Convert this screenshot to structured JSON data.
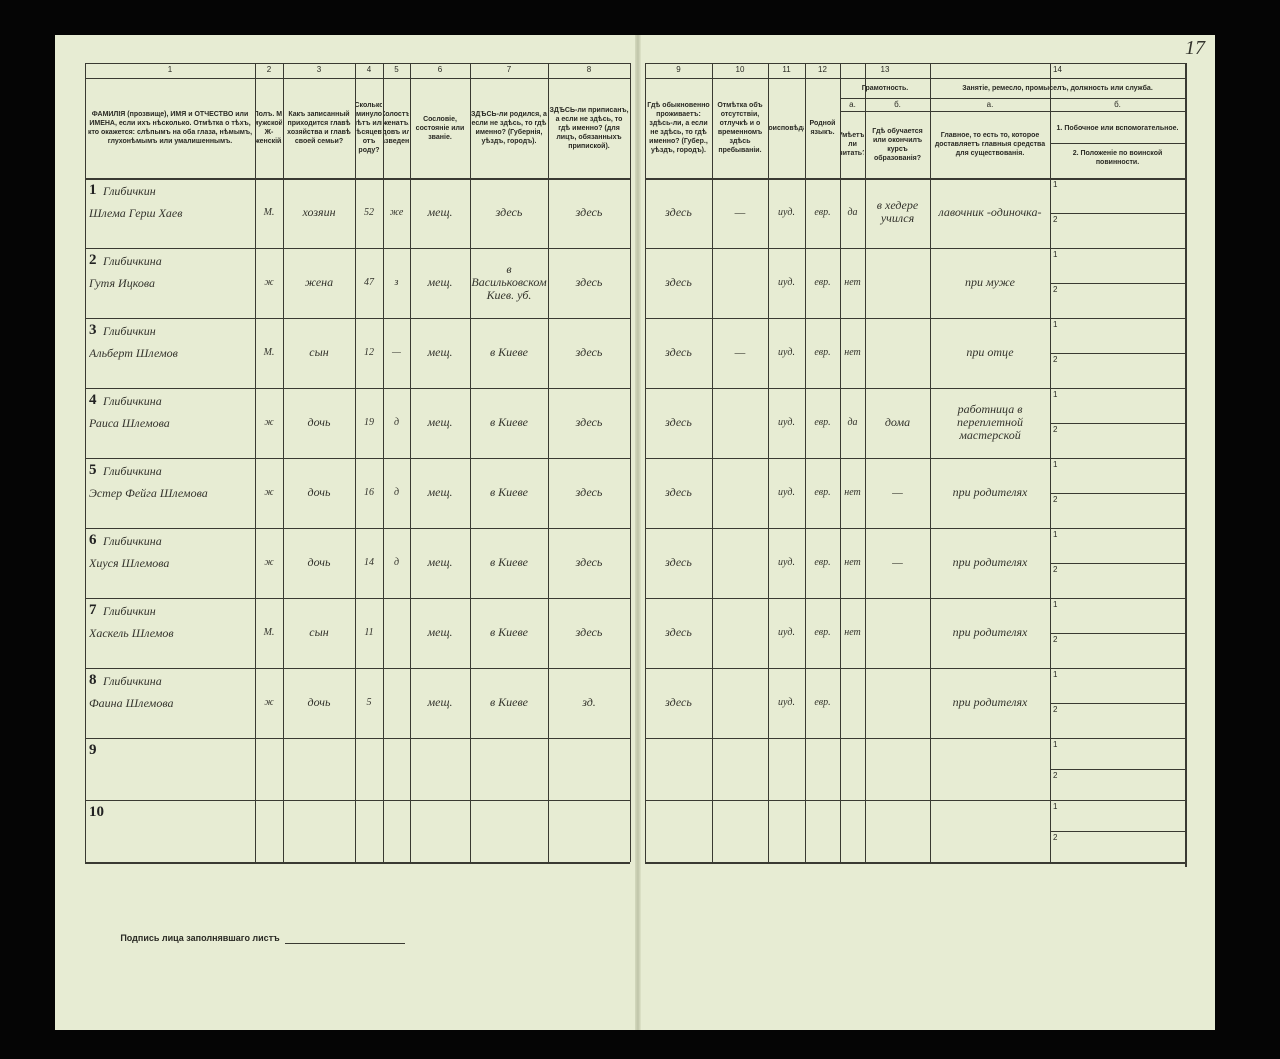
{
  "page": {
    "corner_mark": "17"
  },
  "columns": [
    {
      "num": "1",
      "header": "ФАМИЛІЯ (прозвище), ИМЯ и ОТЧЕСТВО или ИМЕНА, если ихъ нѣсколько. Отмѣтка о тѣхъ, кто окажется: слѣпымъ на оба глаза, нѣмымъ, глухонѣмымъ или умалишеннымъ."
    },
    {
      "num": "2",
      "header": "Полъ. М-мужской. Ж-женскій."
    },
    {
      "num": "3",
      "header": "Какъ записанный приходится главѣ хозяйства и главѣ своей семьи?"
    },
    {
      "num": "4",
      "header": "Сколько минуло лѣтъ или мѣсяцевъ отъ роду?"
    },
    {
      "num": "5",
      "header": "Холостъ, женатъ, вдовъ или разведенъ."
    },
    {
      "num": "6",
      "header": "Сословіе, состояніе или званіе."
    },
    {
      "num": "7",
      "header": "ЗДѢСЬ-ли родился, а если не здѣсь, то гдѣ именно? (Губернія, уѣздъ, городъ)."
    },
    {
      "num": "8",
      "header": "ЗДѢСЬ-ли приписанъ, а если не здѣсь, то гдѣ именно? (для лицъ, обязанныхъ припиской)."
    },
    {
      "num": "9",
      "header": "Гдѣ обыкновенно проживаетъ: здѣсь-ли, а если не здѣсь, то гдѣ именно? (Губер., уѣздъ, городъ)."
    },
    {
      "num": "10",
      "header": "Отмѣтка объ отсутствіи, отлучкѣ и о временномъ здѣсь пребываніи."
    },
    {
      "num": "11",
      "header": "Вѣроисповѣданіе."
    },
    {
      "num": "12",
      "header": "Родной языкъ."
    },
    {
      "num": "13",
      "header": "Грамотность.",
      "sub": [
        {
          "letter": "а.",
          "header": "Умѣетъ-ли читать?"
        },
        {
          "letter": "б.",
          "header": "Гдѣ обучается или окончилъ курсъ образованія?"
        }
      ]
    },
    {
      "num": "14",
      "header": "Занятіе, ремесло, промыселъ, должность или служба.",
      "sub": [
        {
          "letter": "а.",
          "header": "Главное, то есть то, которое доставляетъ главныя средства для существованія."
        },
        {
          "letter": "б.",
          "lines": [
            "1. Побочное или вспомогательное.",
            "2. Положеніе по воинской повинности."
          ]
        }
      ]
    }
  ],
  "rows": [
    {
      "num": "1",
      "name": [
        "Глибичкин",
        "Шлема Герш Хаев"
      ],
      "cells": {
        "2": "М.",
        "3": "хозяин",
        "4": "52",
        "5": "же",
        "6": "мещ.",
        "7": "здесь",
        "8": "здесь",
        "9": "здесь",
        "10": "—",
        "11": "иуд.",
        "12": "евр.",
        "13a": "да",
        "13b": "в хедере учился",
        "14a": "лавочник -одиночка-"
      }
    },
    {
      "num": "2",
      "name": [
        "Глибичкина",
        "Гутя Ицкова"
      ],
      "cells": {
        "2": "ж",
        "3": "жена",
        "4": "47",
        "5": "з",
        "6": "мещ.",
        "7": "в Васильковском Киев. уб.",
        "8": "здесь",
        "9": "здесь",
        "11": "иуд.",
        "12": "евр.",
        "13a": "нет",
        "14a": "при муже"
      }
    },
    {
      "num": "3",
      "name": [
        "Глибичкин",
        "Альберт Шлемов"
      ],
      "cells": {
        "2": "М.",
        "3": "сын",
        "4": "12",
        "5": "—",
        "6": "мещ.",
        "7": "в Киеве",
        "8": "здесь",
        "9": "здесь",
        "10": "—",
        "11": "иуд.",
        "12": "евр.",
        "13a": "нет",
        "14a": "при отце"
      }
    },
    {
      "num": "4",
      "name": [
        "Глибичкина",
        "Раиса Шлемова"
      ],
      "cells": {
        "2": "ж",
        "3": "дочь",
        "4": "19",
        "5": "д",
        "6": "мещ.",
        "7": "в Киеве",
        "8": "здесь",
        "9": "здесь",
        "11": "иуд.",
        "12": "евр.",
        "13a": "да",
        "13b": "дома",
        "14a": "работница в переплетной мастерской"
      }
    },
    {
      "num": "5",
      "name": [
        "Глибичкина",
        "Эстер Фейга Шлемова"
      ],
      "cells": {
        "2": "ж",
        "3": "дочь",
        "4": "16",
        "5": "д",
        "6": "мещ.",
        "7": "в Киеве",
        "8": "здесь",
        "9": "здесь",
        "11": "иуд.",
        "12": "евр.",
        "13a": "нет",
        "13b": "—",
        "14a": "при родителях"
      }
    },
    {
      "num": "6",
      "name": [
        "Глибичкина",
        "Хиуся Шлемова"
      ],
      "cells": {
        "2": "ж",
        "3": "дочь",
        "4": "14",
        "5": "д",
        "6": "мещ.",
        "7": "в Киеве",
        "8": "здесь",
        "9": "здесь",
        "11": "иуд.",
        "12": "евр.",
        "13a": "нет",
        "13b": "—",
        "14a": "при родителях"
      }
    },
    {
      "num": "7",
      "name": [
        "Глибичкин",
        "Хаскель Шлемов"
      ],
      "cells": {
        "2": "М.",
        "3": "сын",
        "4": "11",
        "6": "мещ.",
        "7": "в Киеве",
        "8": "здесь",
        "9": "здесь",
        "11": "иуд.",
        "12": "евр.",
        "13a": "нет",
        "14a": "при родителях"
      }
    },
    {
      "num": "8",
      "name": [
        "Глибичкина",
        "Фаина Шлемова"
      ],
      "cells": {
        "2": "ж",
        "3": "дочь",
        "4": "5",
        "6": "мещ.",
        "7": "в Киеве",
        "8": "зд.",
        "9": "здесь",
        "11": "иуд.",
        "12": "евр.",
        "14a": "при родителях"
      }
    },
    {
      "num": "9"
    },
    {
      "num": "10"
    }
  ],
  "sub_labels": [
    "1",
    "2"
  ],
  "signature_label": "Подпись лица заполнявшаго листъ"
}
